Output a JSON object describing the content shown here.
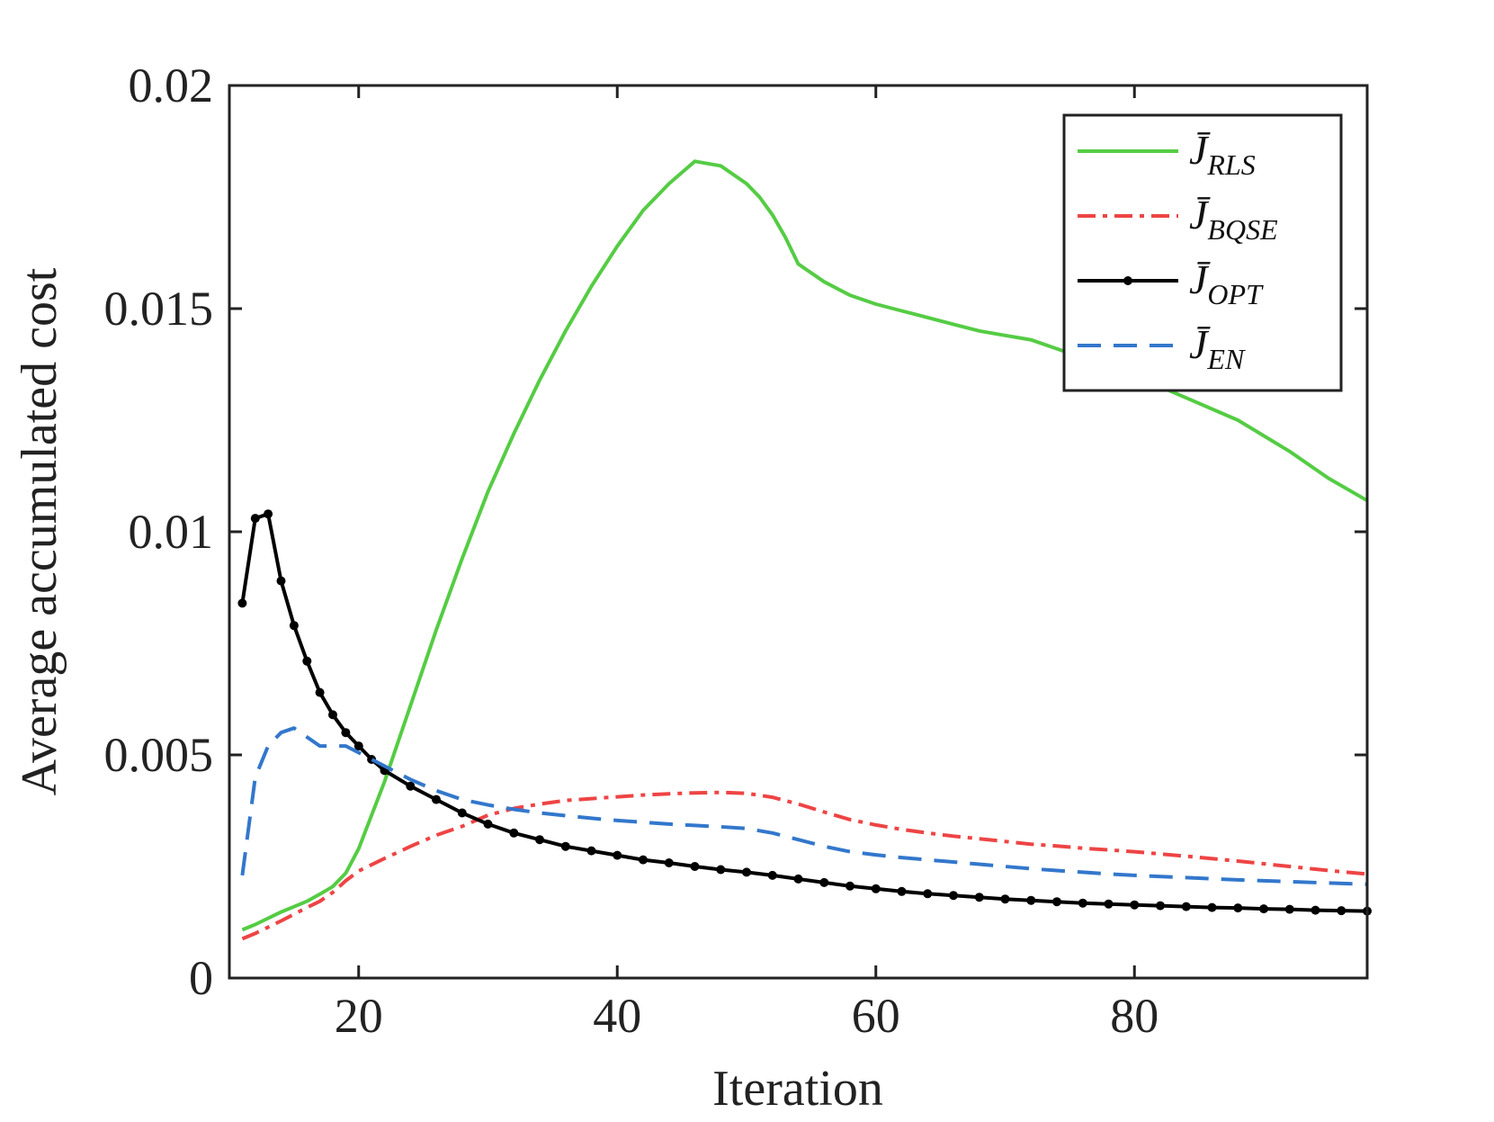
{
  "chart_data": {
    "type": "line",
    "title": "",
    "xlabel": "Iteration",
    "ylabel": "Average accumulated cost",
    "xlim": [
      10,
      98
    ],
    "ylim": [
      0,
      0.02
    ],
    "xticks": [
      20,
      40,
      60,
      80
    ],
    "xtick_labels": [
      "20",
      "40",
      "60",
      "80"
    ],
    "yticks": [
      0,
      0.005,
      0.01,
      0.015,
      0.02
    ],
    "ytick_labels": [
      "0",
      "0.005",
      "0.01",
      "0.015",
      "0.02"
    ],
    "grid": false,
    "legend_position": "top-right",
    "series": [
      {
        "name": "J̄_RLS",
        "legend_main": "J̄",
        "legend_sub": "RLS",
        "color": "#55cc44",
        "dash": "solid",
        "markers": false,
        "x": [
          11,
          12,
          14,
          16,
          17,
          18,
          19,
          20,
          22,
          24,
          26,
          28,
          30,
          32,
          34,
          36,
          38,
          40,
          42,
          44,
          46,
          48,
          50,
          51,
          52,
          53,
          54,
          56,
          58,
          60,
          62,
          64,
          66,
          68,
          70,
          72,
          74,
          76,
          78,
          80,
          84,
          88,
          92,
          95,
          98
        ],
        "values": [
          0.00108,
          0.0012,
          0.00148,
          0.00172,
          0.00188,
          0.00205,
          0.00235,
          0.0029,
          0.0044,
          0.0061,
          0.0078,
          0.0094,
          0.0109,
          0.0122,
          0.0134,
          0.0145,
          0.0155,
          0.0164,
          0.0172,
          0.0178,
          0.0183,
          0.0182,
          0.0178,
          0.0175,
          0.0171,
          0.0166,
          0.016,
          0.0156,
          0.0153,
          0.0151,
          0.01495,
          0.0148,
          0.01465,
          0.0145,
          0.0144,
          0.0143,
          0.0141,
          0.0139,
          0.0137,
          0.0135,
          0.013,
          0.0125,
          0.0118,
          0.0112,
          0.0107
        ]
      },
      {
        "name": "J̄_BQSE",
        "legend_main": "J̄",
        "legend_sub": "BQSE",
        "color": "#ee4444",
        "dash": "dashdot",
        "markers": false,
        "x": [
          11,
          12,
          14,
          16,
          17,
          18,
          19,
          20,
          22,
          24,
          26,
          28,
          30,
          32,
          34,
          36,
          38,
          40,
          42,
          44,
          46,
          48,
          50,
          52,
          54,
          56,
          58,
          60,
          62,
          64,
          66,
          68,
          70,
          72,
          74,
          76,
          78,
          80,
          84,
          88,
          92,
          95,
          98
        ],
        "values": [
          0.00088,
          0.001,
          0.00128,
          0.00158,
          0.00172,
          0.00192,
          0.00218,
          0.0024,
          0.00268,
          0.00295,
          0.0032,
          0.0034,
          0.00365,
          0.0038,
          0.0039,
          0.00398,
          0.00402,
          0.00406,
          0.0041,
          0.00413,
          0.00415,
          0.00416,
          0.00414,
          0.00405,
          0.0039,
          0.00372,
          0.00355,
          0.00343,
          0.00333,
          0.00325,
          0.00318,
          0.00312,
          0.00306,
          0.003,
          0.00296,
          0.00291,
          0.00287,
          0.00283,
          0.00273,
          0.00262,
          0.0025,
          0.00241,
          0.00233
        ]
      },
      {
        "name": "J̄_OPT",
        "legend_main": "J̄",
        "legend_sub": "OPT",
        "color": "#000000",
        "dash": "solid",
        "markers": true,
        "x": [
          11,
          12,
          13,
          14,
          15,
          16,
          17,
          18,
          19,
          20,
          21,
          22,
          24,
          26,
          28,
          30,
          32,
          34,
          36,
          38,
          40,
          42,
          44,
          46,
          48,
          50,
          52,
          54,
          56,
          58,
          60,
          62,
          64,
          66,
          68,
          70,
          72,
          74,
          76,
          78,
          80,
          82,
          84,
          86,
          88,
          90,
          92,
          94,
          96,
          98
        ],
        "values": [
          0.0084,
          0.0103,
          0.0104,
          0.0089,
          0.0079,
          0.0071,
          0.0064,
          0.0059,
          0.0055,
          0.0052,
          0.0049,
          0.00465,
          0.0043,
          0.004,
          0.0037,
          0.00345,
          0.00325,
          0.0031,
          0.00295,
          0.00285,
          0.00275,
          0.00265,
          0.00258,
          0.0025,
          0.00243,
          0.00237,
          0.0023,
          0.00222,
          0.00214,
          0.00206,
          0.002,
          0.00194,
          0.00189,
          0.00185,
          0.00181,
          0.00177,
          0.00174,
          0.00171,
          0.00168,
          0.00166,
          0.00164,
          0.00162,
          0.0016,
          0.00158,
          0.00157,
          0.00155,
          0.00154,
          0.00152,
          0.00151,
          0.0015
        ]
      },
      {
        "name": "J̄_EN",
        "legend_main": "J̄",
        "legend_sub": "EN",
        "color": "#3377cc",
        "dash": "dashed",
        "markers": false,
        "x": [
          11,
          12,
          13,
          14,
          15,
          16,
          17,
          18,
          19,
          20,
          22,
          24,
          26,
          28,
          30,
          32,
          34,
          36,
          38,
          40,
          42,
          44,
          46,
          48,
          50,
          52,
          54,
          56,
          58,
          60,
          62,
          64,
          66,
          68,
          70,
          72,
          74,
          76,
          78,
          80,
          84,
          88,
          92,
          95,
          98
        ],
        "values": [
          0.0023,
          0.0045,
          0.0052,
          0.0055,
          0.0056,
          0.0054,
          0.0052,
          0.0052,
          0.0052,
          0.00505,
          0.00475,
          0.00445,
          0.0042,
          0.004,
          0.00388,
          0.00378,
          0.0037,
          0.00364,
          0.00358,
          0.00353,
          0.00349,
          0.00345,
          0.00342,
          0.00339,
          0.00335,
          0.00325,
          0.0031,
          0.00295,
          0.00283,
          0.00276,
          0.0027,
          0.00265,
          0.0026,
          0.00255,
          0.0025,
          0.00245,
          0.00241,
          0.00237,
          0.00233,
          0.0023,
          0.00225,
          0.0022,
          0.00216,
          0.00213,
          0.0021
        ]
      }
    ]
  }
}
